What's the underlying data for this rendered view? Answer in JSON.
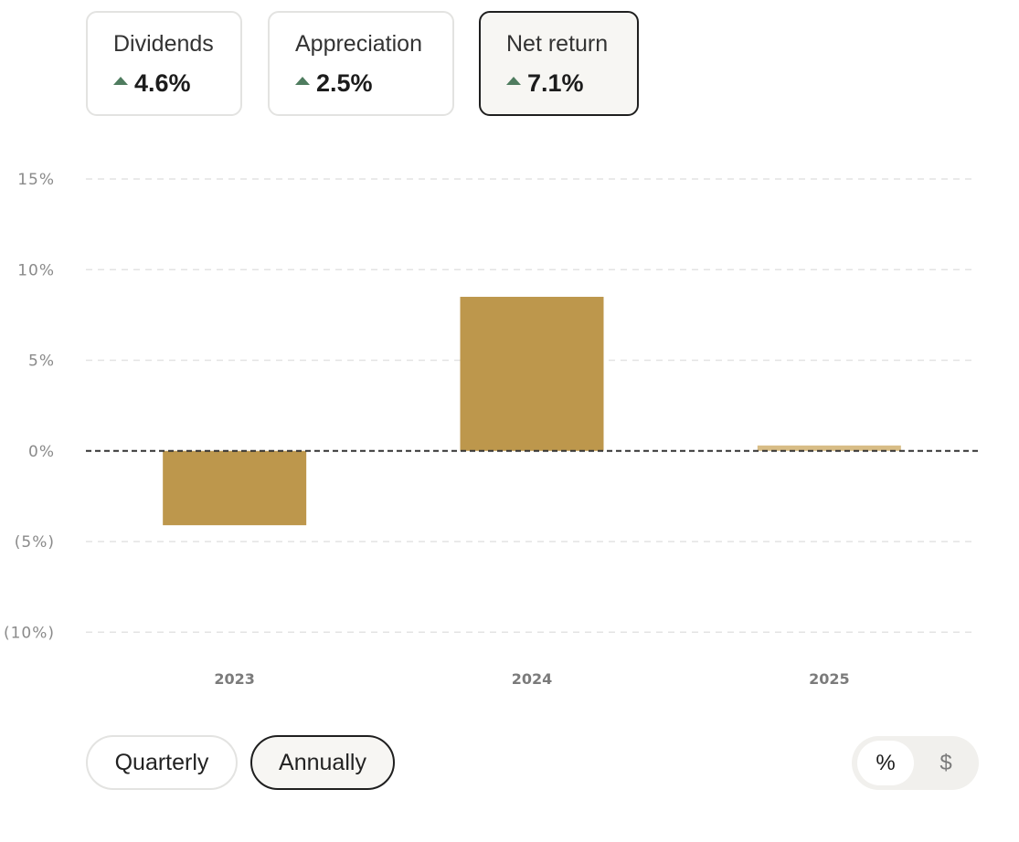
{
  "metrics": [
    {
      "label": "Dividends",
      "value": "4.6%",
      "selected": false
    },
    {
      "label": "Appreciation",
      "value": "2.5%",
      "selected": false
    },
    {
      "label": "Net return",
      "value": "7.1%",
      "selected": true
    }
  ],
  "chart_data": {
    "type": "bar",
    "categories": [
      "2023",
      "2024",
      "2025"
    ],
    "values": [
      -4.1,
      8.5,
      0.3
    ],
    "ylim": [
      -10,
      15
    ],
    "yticks": [
      15,
      10,
      5,
      0,
      -5,
      -10
    ],
    "ytick_labels": [
      "15%",
      "10%",
      "5%",
      "0%",
      "(5%)",
      "(10%)"
    ],
    "grid": true,
    "colors": {
      "bar": "#bd974c",
      "bar_current": "#d8bd86",
      "grid": "#e3e3e3",
      "zero_line": "#333333"
    }
  },
  "period_toggle": {
    "options": [
      "Quarterly",
      "Annually"
    ],
    "selected": "Annually"
  },
  "unit_toggle": {
    "options": [
      "%",
      "$"
    ],
    "selected": "%"
  }
}
